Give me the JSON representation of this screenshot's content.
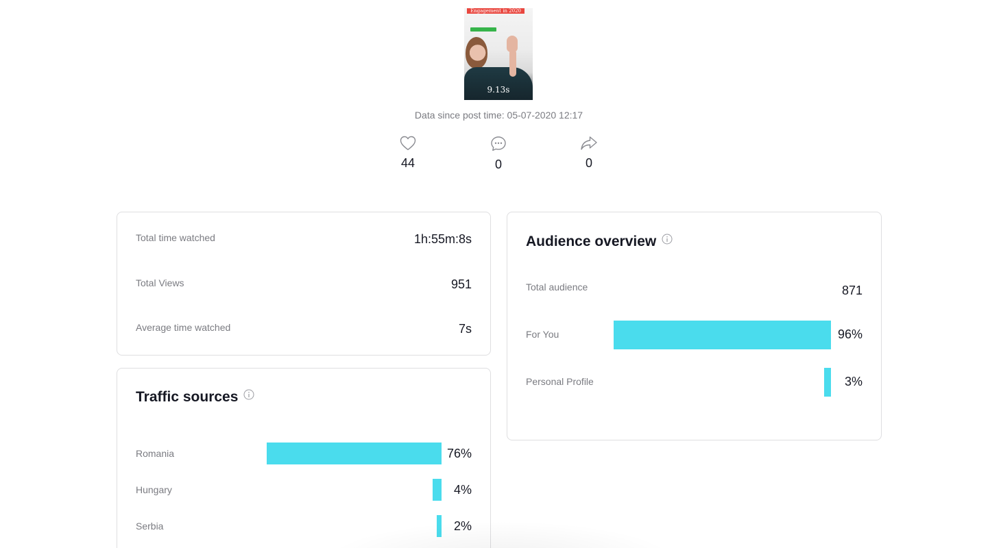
{
  "video": {
    "banner_text": "Engagement in 2020",
    "duration": "9.13s"
  },
  "data_since": "Data since post time: 05-07-2020 12:17",
  "engagement": {
    "likes": "44",
    "comments": "0",
    "shares": "0"
  },
  "stats": {
    "total_time_watched": {
      "label": "Total time watched",
      "value": "1h:55m:8s"
    },
    "total_views": {
      "label": "Total Views",
      "value": "951"
    },
    "average_time_watched": {
      "label": "Average time watched",
      "value": "7s"
    }
  },
  "traffic_sources": {
    "title": "Traffic sources",
    "items": [
      {
        "label": "Romania",
        "percent": 76,
        "percent_text": "76%"
      },
      {
        "label": "Hungary",
        "percent": 4,
        "percent_text": "4%"
      },
      {
        "label": "Serbia",
        "percent": 2,
        "percent_text": "2%"
      }
    ]
  },
  "audience_overview": {
    "title": "Audience overview",
    "total_audience": {
      "label": "Total audience",
      "value": "871"
    },
    "items": [
      {
        "label": "For You",
        "percent": 96,
        "percent_text": "96%"
      },
      {
        "label": "Personal Profile",
        "percent": 3,
        "percent_text": "3%"
      }
    ]
  },
  "colors": {
    "bar": "#4adced",
    "text_primary": "#161823",
    "text_secondary": "#7a7b81"
  },
  "icons": {
    "like": "heart-outline-icon",
    "comment": "chat-bubble-icon",
    "share": "share-arrow-icon",
    "info": "info-circle-icon"
  }
}
